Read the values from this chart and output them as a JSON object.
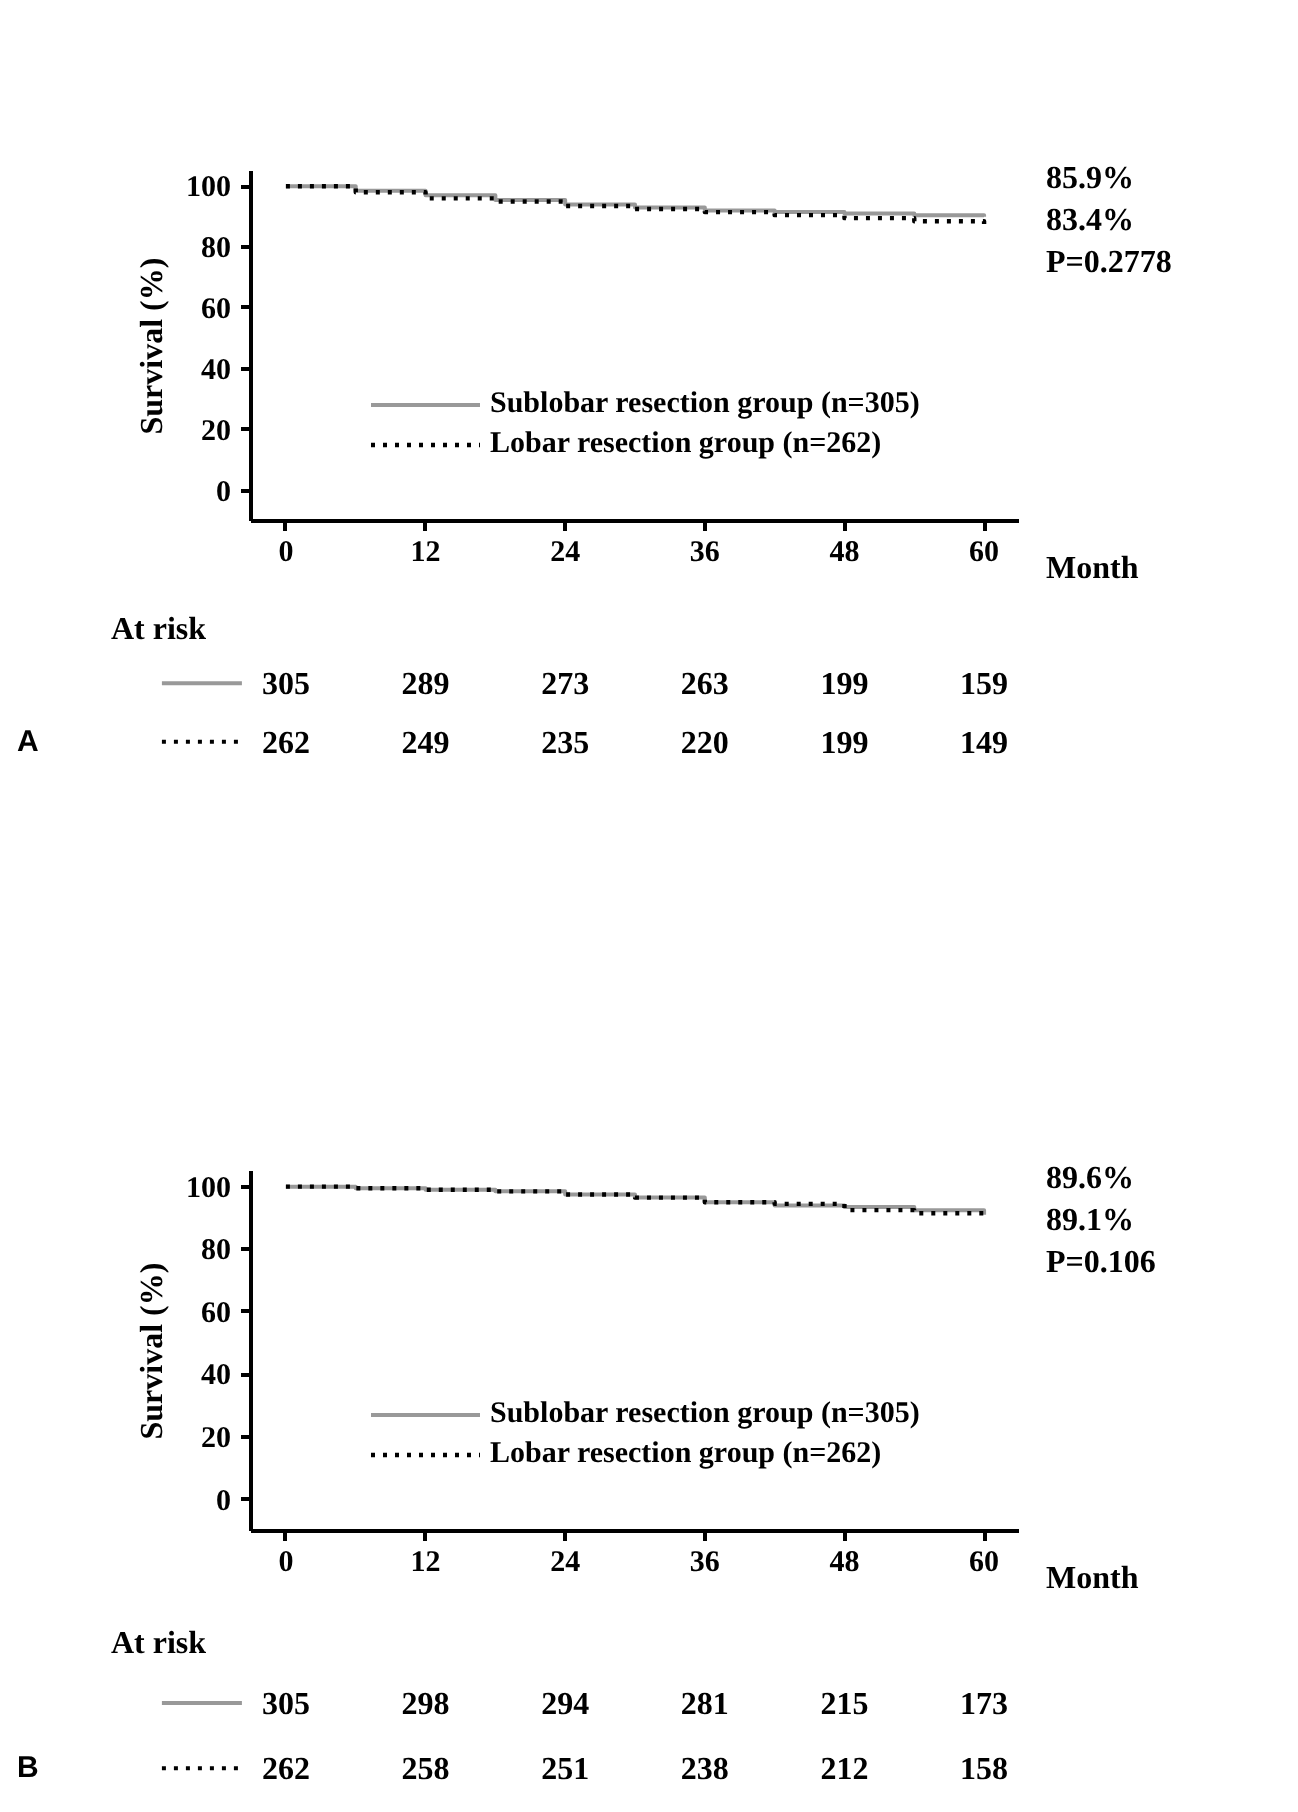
{
  "chart_data": [
    {
      "type": "step",
      "ylabel": "Survival (%)",
      "xlabel": "Month",
      "xlim": [
        -3,
        63
      ],
      "xticks": [
        0,
        12,
        24,
        36,
        48,
        60
      ],
      "ylim": [
        -10,
        105
      ],
      "yticks": [
        0,
        20,
        40,
        60,
        80,
        100
      ],
      "grid": false,
      "legend": "bottom right",
      "series": [
        {
          "name": "Sublobar resection group (n=305)",
          "color": "#999999",
          "line_style": "solid",
          "x": [
            0,
            6,
            12,
            18,
            24,
            30,
            36,
            42,
            48,
            54,
            60
          ],
          "values": [
            100,
            98.5,
            97,
            95.5,
            94,
            93,
            92,
            91.5,
            91,
            90.5,
            90
          ]
        },
        {
          "name": "Lobar resection group (n=262)",
          "color": "#000000",
          "line_style": "dotted",
          "x": [
            0,
            6,
            12,
            18,
            24,
            30,
            36,
            42,
            48,
            54,
            60
          ],
          "values": [
            100,
            98,
            96,
            95,
            93.5,
            92.5,
            91.5,
            90.5,
            89.5,
            88.5,
            87
          ]
        }
      ],
      "annotations": [
        "85.9%",
        "83.4%",
        "P=0.2778",
        "At risk",
        "305",
        "289",
        "273",
        "263",
        "199",
        "159",
        "262",
        "249",
        "235",
        "220",
        "199",
        "149",
        "A"
      ]
    },
    {
      "type": "step",
      "ylabel": "Survival (%)",
      "xlabel": "Month",
      "xlim": [
        -3,
        63
      ],
      "xticks": [
        0,
        12,
        24,
        36,
        48,
        60
      ],
      "ylim": [
        -10,
        105
      ],
      "yticks": [
        0,
        20,
        40,
        60,
        80,
        100
      ],
      "grid": false,
      "legend": "bottom right",
      "series": [
        {
          "name": "Sublobar resection group (n=305)",
          "color": "#999999",
          "line_style": "solid",
          "x": [
            0,
            6,
            12,
            18,
            24,
            30,
            36,
            42,
            48,
            54,
            60
          ],
          "values": [
            100,
            99.5,
            99,
            98.5,
            97.5,
            96.5,
            95,
            94,
            93.5,
            92.5,
            91
          ]
        },
        {
          "name": "Lobar resection group (n=262)",
          "color": "#000000",
          "line_style": "dotted",
          "x": [
            0,
            6,
            12,
            18,
            24,
            30,
            36,
            42,
            48,
            54,
            60
          ],
          "values": [
            100,
            99.5,
            99,
            98.5,
            97.5,
            96.5,
            95,
            94.5,
            92.5,
            91.5,
            89.5
          ]
        }
      ],
      "annotations": [
        "89.6%",
        "89.1%",
        "P=0.106",
        "At risk",
        "305",
        "298",
        "294",
        "281",
        "215",
        "173",
        "262",
        "258",
        "251",
        "238",
        "212",
        "158",
        "B"
      ]
    }
  ]
}
